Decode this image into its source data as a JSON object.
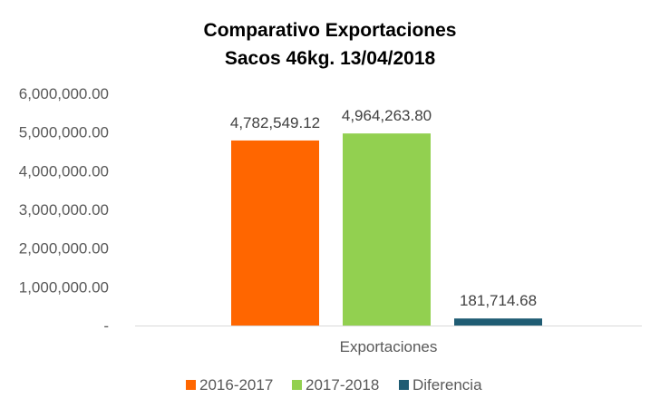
{
  "chart_data": {
    "type": "bar",
    "title": "Comparativo  Exportaciones",
    "subtitle": "Sacos 46kg. 13/04/2018",
    "categories": [
      "Exportaciones"
    ],
    "series": [
      {
        "name": "2016-2017",
        "values": [
          4782549.12
        ],
        "label": "4,782,549.12",
        "color": "#FF6600"
      },
      {
        "name": "2017-2018",
        "values": [
          4964263.8
        ],
        "label": "4,964,263.80",
        "color": "#92D050"
      },
      {
        "name": "Diferencia",
        "values": [
          181714.68
        ],
        "label": "181,714.68",
        "color": "#1F5C73"
      }
    ],
    "ylim": [
      0,
      6000000
    ],
    "y_ticks": [
      {
        "value": 0,
        "label": "-"
      },
      {
        "value": 1000000,
        "label": "1,000,000.00"
      },
      {
        "value": 2000000,
        "label": "2,000,000.00"
      },
      {
        "value": 3000000,
        "label": "3,000,000.00"
      },
      {
        "value": 4000000,
        "label": "4,000,000.00"
      },
      {
        "value": 5000000,
        "label": "5,000,000.00"
      },
      {
        "value": 6000000,
        "label": "6,000,000.00"
      }
    ],
    "grid": false,
    "legend_position": "bottom"
  }
}
